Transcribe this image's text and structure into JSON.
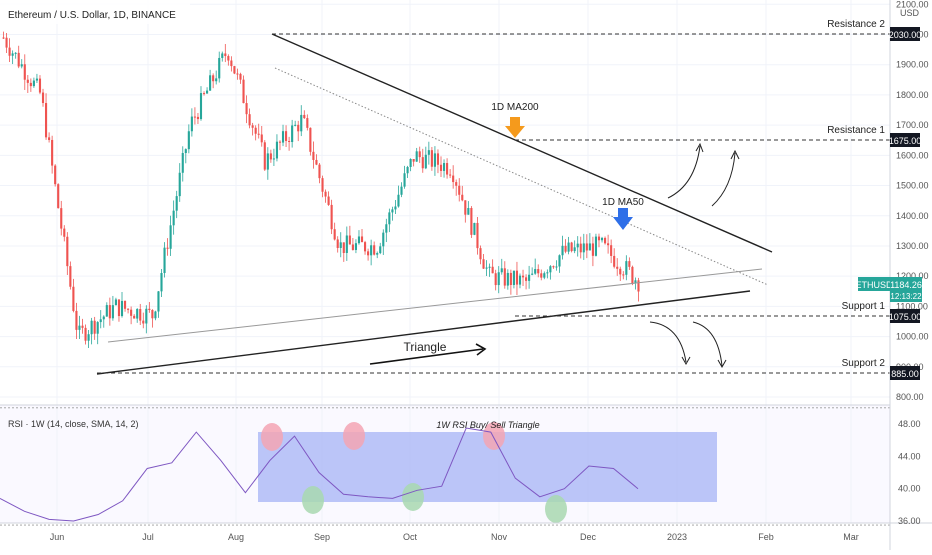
{
  "header": {
    "symbol_line": "Ethereum / U.S. Dollar, 1D, BINANCE",
    "currency": "USD"
  },
  "colors": {
    "up": "#26a69a",
    "down": "#ef5350",
    "rsi_line": "#7e57c2",
    "rsi_band": "#9aa9f5",
    "ticker_badge": "#26a69a",
    "arrow_orange": "#f59a1c",
    "arrow_blue": "#2f6fe8"
  },
  "price_pane": {
    "price_axis_ticks": [
      "2100.00",
      "2000.00",
      "1900.00",
      "1800.00",
      "1700.00",
      "1600.00",
      "1500.00",
      "1400.00",
      "1300.00",
      "1200.00",
      "1100.00",
      "1000.00",
      "900.00",
      "800.00"
    ],
    "last_price_ticker": "ETHUSD",
    "last_price": "1184.26",
    "countdown": "12:13:22",
    "levels": [
      {
        "label": "Resistance 2",
        "value": "2030.00"
      },
      {
        "label": "Resistance 1",
        "value": "1675.00"
      },
      {
        "label": "Support 1",
        "value": "1075.00"
      },
      {
        "label": "Support 2",
        "value": "885.00"
      }
    ],
    "annotations": {
      "ma200": "1D MA200",
      "ma50": "1D MA50",
      "triangle": "Triangle"
    }
  },
  "rsi_pane": {
    "title": "RSI · 1W (14, close, SMA, 14, 2)",
    "annotation": "1W RSI Buy/ Sell Triangle",
    "axis_ticks": [
      "48.00",
      "44.00",
      "40.00",
      "36.00"
    ]
  },
  "time_axis": {
    "labels": [
      "Jun",
      "Jul",
      "Aug",
      "Sep",
      "Oct",
      "Nov",
      "Dec",
      "2023",
      "Feb",
      "Mar"
    ]
  },
  "chart_data": {
    "type": "candlestick",
    "title": "Ethereum / U.S. Dollar, 1D, BINANCE",
    "ylim": [
      780,
      2120
    ],
    "x_labels": [
      "Jun",
      "Jul",
      "Aug",
      "Sep",
      "Oct",
      "Nov",
      "Dec",
      "2023",
      "Feb",
      "Mar"
    ],
    "price_path": [
      {
        "month": "mid-May",
        "price": 1990
      },
      {
        "month": "early Jun",
        "price": 1800
      },
      {
        "month": "mid Jun",
        "price": 1000
      },
      {
        "month": "late Jun",
        "price": 1100
      },
      {
        "month": "early Jul",
        "price": 1070
      },
      {
        "month": "late Jul",
        "price": 1700
      },
      {
        "month": "mid Aug",
        "price": 1950
      },
      {
        "month": "early Sep",
        "price": 1580
      },
      {
        "month": "mid Sep",
        "price": 1720
      },
      {
        "month": "late Sep",
        "price": 1300
      },
      {
        "month": "mid Oct",
        "price": 1300
      },
      {
        "month": "late Oct",
        "price": 1600
      },
      {
        "month": "early Nov",
        "price": 1560
      },
      {
        "month": "mid Nov",
        "price": 1200
      },
      {
        "month": "late Nov",
        "price": 1180
      },
      {
        "month": "early Dec",
        "price": 1280
      },
      {
        "month": "mid Dec",
        "price": 1300
      },
      {
        "month": "late Dec",
        "price": 1184
      }
    ],
    "horizontal_levels": [
      {
        "label": "Resistance 2",
        "value": 2030
      },
      {
        "label": "Resistance 1",
        "value": 1675
      },
      {
        "label": "Support 1",
        "value": 1075
      },
      {
        "label": "Support 2",
        "value": 885
      }
    ],
    "last_price": 1184.26,
    "rsi": {
      "timeframe": "1W",
      "ylim": [
        35,
        50
      ],
      "values": [
        38.8,
        37.2,
        36.2,
        36.0,
        36.8,
        38.5,
        42.5,
        43.2,
        47.0,
        43.5,
        39.5,
        43.5,
        46.5,
        42.0,
        39.3,
        39.0,
        38.8,
        39.8,
        40.3,
        47.5,
        47.0,
        41.3,
        39.0,
        40.0,
        42.8,
        42.5,
        40.0
      ]
    }
  }
}
